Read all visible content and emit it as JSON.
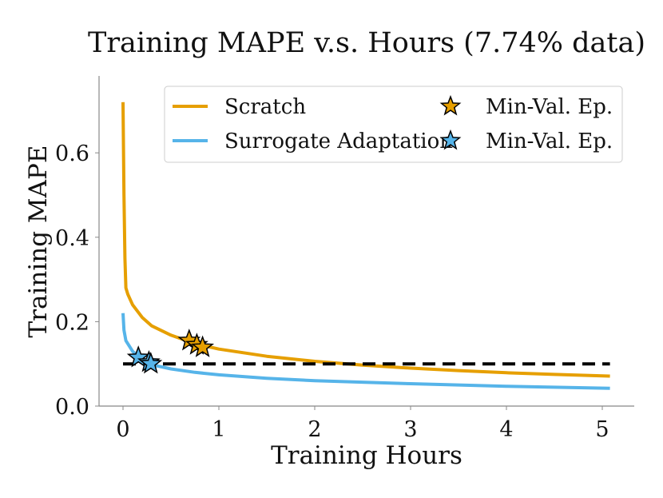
{
  "chart_data": {
    "type": "line",
    "title": "Training MAPE v.s. Hours (7.74% data)",
    "xlabel": "Training Hours",
    "ylabel": "Training MAPE",
    "xlim": [
      -0.25,
      5.33
    ],
    "ylim": [
      0.0,
      0.78
    ],
    "xticks": [
      0,
      1,
      2,
      3,
      4,
      5
    ],
    "xtick_labels": [
      "0",
      "1",
      "2",
      "3",
      "4",
      "5"
    ],
    "yticks": [
      0.0,
      0.2,
      0.4,
      0.6
    ],
    "ytick_labels": [
      "0.0",
      "0.2",
      "0.4",
      "0.6"
    ],
    "grid": false,
    "legend_placement": "top-right",
    "series": [
      {
        "name": "Scratch",
        "color": "#E69F00",
        "x": [
          0,
          0.01,
          0.02,
          0.03,
          0.05,
          0.1,
          0.2,
          0.3,
          0.5,
          0.75,
          1,
          1.5,
          2,
          2.5,
          3,
          3.5,
          4,
          4.5,
          5.08
        ],
        "y": [
          0.72,
          0.5,
          0.35,
          0.28,
          0.265,
          0.24,
          0.21,
          0.19,
          0.168,
          0.148,
          0.135,
          0.118,
          0.106,
          0.097,
          0.09,
          0.084,
          0.079,
          0.075,
          0.071
        ]
      },
      {
        "name": "Surrogate Adaptation",
        "color": "#56B4E9",
        "x": [
          0,
          0.01,
          0.03,
          0.1,
          0.2,
          0.3,
          0.5,
          0.75,
          1,
          1.5,
          2,
          3,
          4,
          5.08
        ],
        "y": [
          0.22,
          0.18,
          0.155,
          0.13,
          0.108,
          0.098,
          0.088,
          0.08,
          0.074,
          0.066,
          0.06,
          0.053,
          0.047,
          0.042
        ]
      }
    ],
    "markers": [
      {
        "name": "Min-Val. Ep.",
        "color": "#E69F00",
        "x": [
          0.69,
          0.77,
          0.83
        ],
        "y": [
          0.155,
          0.145,
          0.139
        ]
      },
      {
        "name": "Min-Val. Ep.",
        "color": "#56B4E9",
        "x": [
          0.16,
          0.27,
          0.29
        ],
        "y": [
          0.115,
          0.104,
          0.1
        ]
      }
    ],
    "reference_line": {
      "y": 0.1,
      "x": [
        0,
        5.08
      ],
      "style": "dashed",
      "color": "#000000"
    }
  }
}
